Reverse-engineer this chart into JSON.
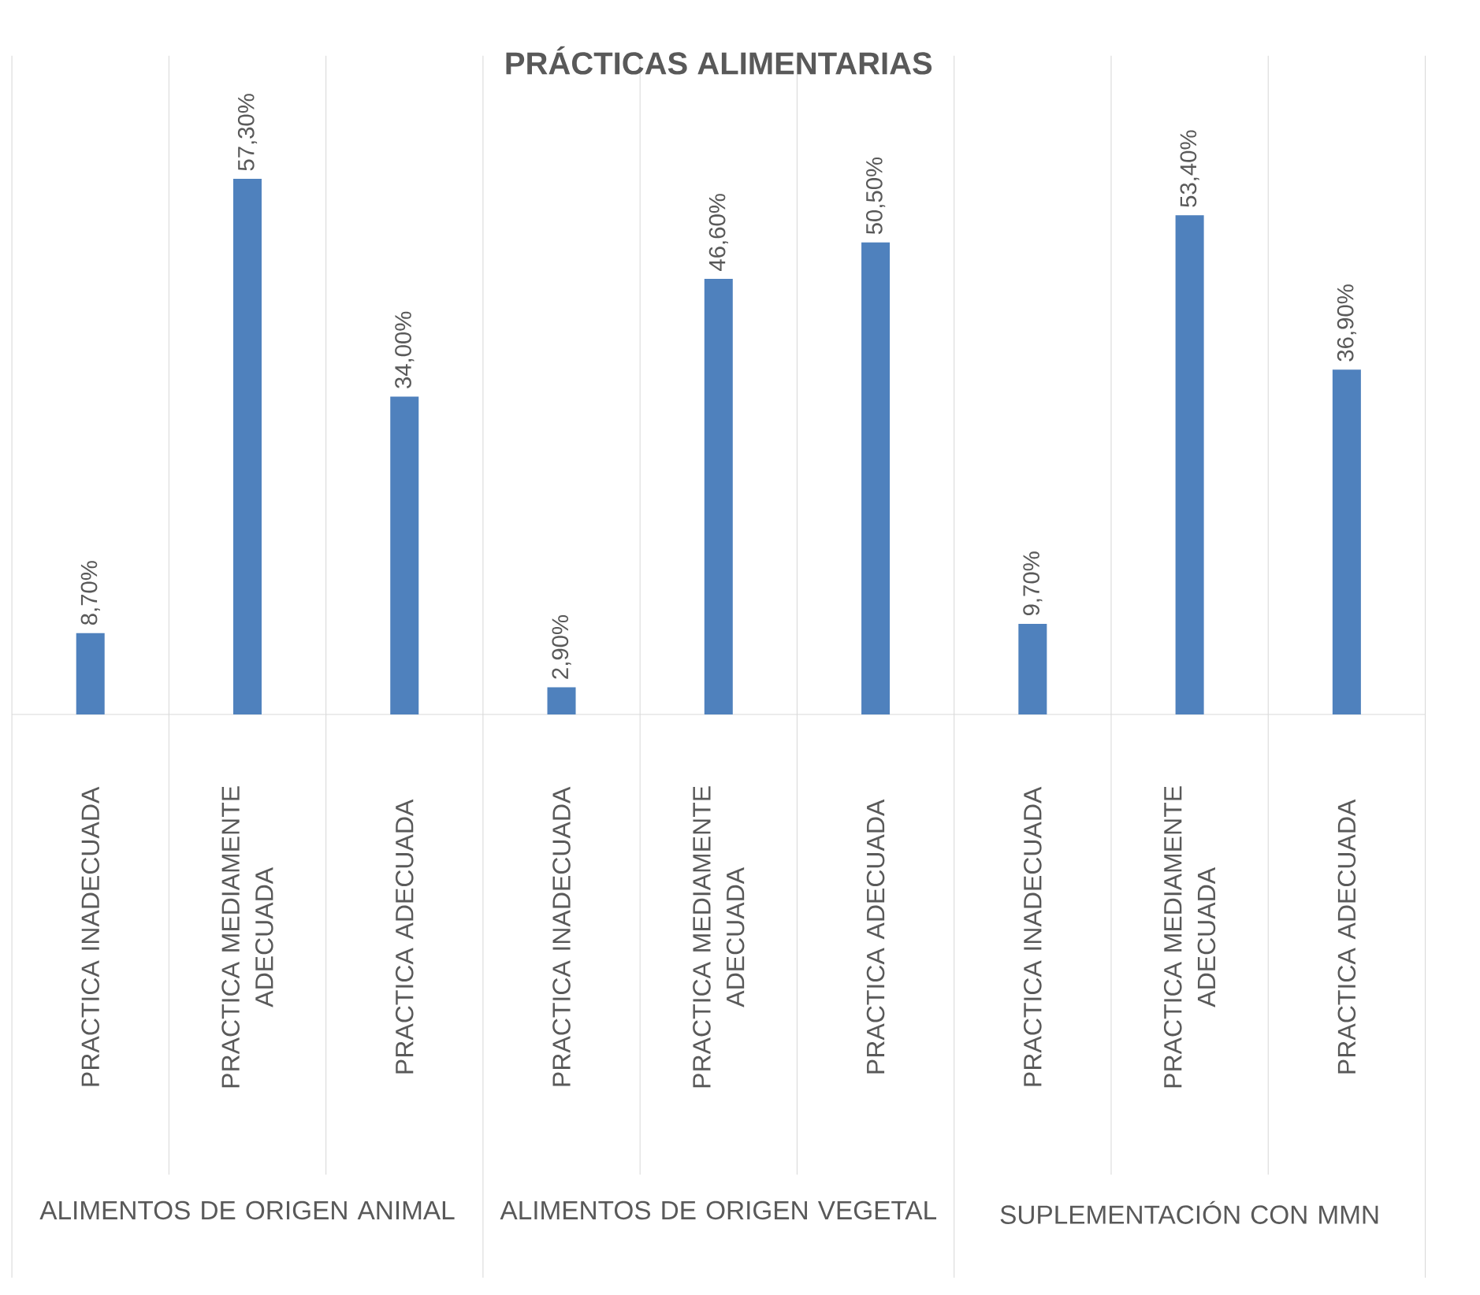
{
  "chart_data": {
    "type": "bar",
    "title": "PRÁCTICAS ALIMENTARIAS",
    "categories": [
      "PRACTICA INADECUADA",
      "PRACTICA MEDIAMENTE ADECUADA",
      "PRACTICA ADECUADA",
      "PRACTICA INADECUADA",
      "PRACTICA MEDIAMENTE ADECUADA",
      "PRACTICA ADECUADA",
      "PRACTICA INADECUADA",
      "PRACTICA MEDIAMENTE ADECUADA",
      "PRACTICA ADECUADA"
    ],
    "values": [
      8.7,
      57.3,
      34.0,
      2.9,
      46.6,
      50.5,
      9.7,
      53.4,
      36.9
    ],
    "value_labels": [
      "8,70%",
      "57,30%",
      "34,00%",
      "2,90%",
      "46,60%",
      "50,50%",
      "9,70%",
      "53,40%",
      "36,90%"
    ],
    "color": "#4f81bd",
    "annotations": [
      "ALIMENTOS DE ORIGEN ANIMAL",
      "ALIMENTOS DE ORIGEN VEGETAL",
      "SUPLEMENTACIÓN CON MMN"
    ],
    "grid": "x"
  }
}
